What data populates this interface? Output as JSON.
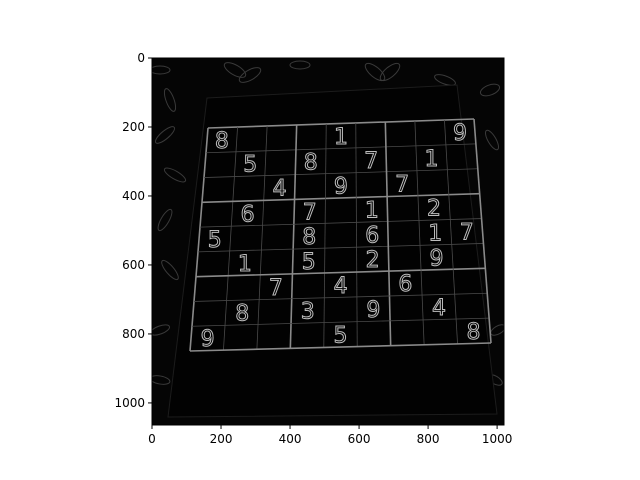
{
  "colors": {
    "image_bg": "#050505",
    "grid_line": "#8a8a8a",
    "axis": "#000000"
  },
  "x_axis": {
    "ticks": [
      0,
      200,
      400,
      600,
      800,
      1000
    ],
    "range": [
      0,
      1020
    ]
  },
  "y_axis": {
    "ticks": [
      0,
      200,
      400,
      600,
      800,
      1000
    ],
    "range": [
      0,
      1064
    ]
  },
  "puzzle": {
    "rows": [
      [
        "8",
        "",
        "",
        "",
        "1",
        "",
        "",
        "",
        "9"
      ],
      [
        "",
        "5",
        "",
        "8",
        "",
        "7",
        "",
        "1",
        ""
      ],
      [
        "",
        "",
        "4",
        "",
        "9",
        "",
        "7",
        "",
        ""
      ],
      [
        "",
        "6",
        "",
        "7",
        "",
        "1",
        "",
        "2",
        ""
      ],
      [
        "5",
        "",
        "",
        "8",
        "",
        "6",
        "",
        "1",
        "7"
      ],
      [
        "",
        "1",
        "",
        "5",
        "",
        "2",
        "",
        "9",
        ""
      ],
      [
        "",
        "",
        "7",
        "",
        "4",
        "",
        "6",
        "",
        ""
      ],
      [
        "",
        "8",
        "",
        "3",
        "",
        "9",
        "",
        "4",
        ""
      ],
      [
        "9",
        "",
        "",
        "",
        "5",
        "",
        "",
        "",
        "8"
      ]
    ]
  }
}
